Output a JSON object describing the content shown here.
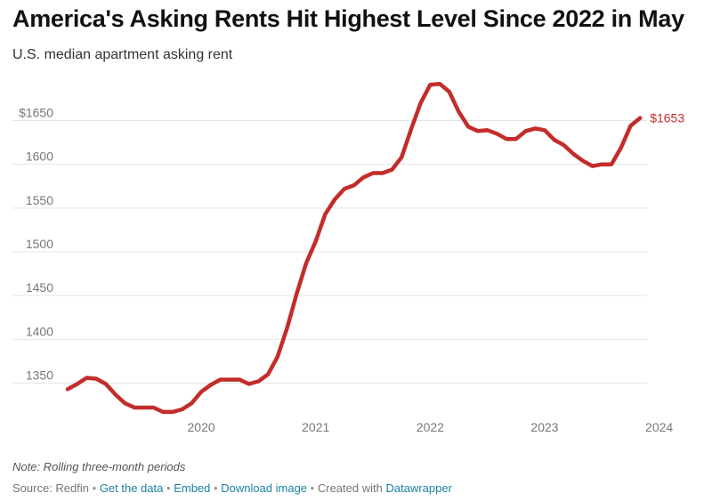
{
  "header": {
    "title": "America's Asking Rents Hit Highest Level Since 2022 in May",
    "subtitle": "U.S. median apartment asking rent"
  },
  "footer": {
    "note": "Note: Rolling three-month periods",
    "source_prefix": "Source: Redfin",
    "sep": "•",
    "get_data": "Get the data",
    "embed": "Embed",
    "download": "Download image",
    "created_with": "Created with",
    "datawrapper": "Datawrapper"
  },
  "colors": {
    "line": "#c22d2a",
    "grid": "#e5e5e5",
    "tick": "#777777",
    "link": "#1d81a2"
  },
  "chart_data": {
    "type": "line",
    "title": "America's Asking Rents Hit Highest Level Since 2022 in May",
    "subtitle": "U.S. median apartment asking rent",
    "xlabel": "",
    "ylabel": "",
    "x_ticks": [
      "2020",
      "2021",
      "2022",
      "2023",
      "2024"
    ],
    "y_ticks": [
      {
        "value": 1350,
        "label": "1350"
      },
      {
        "value": 1400,
        "label": "1400"
      },
      {
        "value": 1450,
        "label": "1450"
      },
      {
        "value": 1500,
        "label": "1500"
      },
      {
        "value": 1550,
        "label": "1550"
      },
      {
        "value": 1600,
        "label": "1600"
      },
      {
        "value": 1650,
        "label": "$1650"
      }
    ],
    "ylim": [
      1310,
      1700
    ],
    "xlim": [
      "2019-05",
      "2024-05"
    ],
    "grid": true,
    "end_label": "$1653",
    "series": [
      {
        "x": [
          "2019-05",
          "2019-06",
          "2019-07",
          "2019-08",
          "2019-09",
          "2019-10",
          "2019-11",
          "2019-12",
          "2020-01",
          "2020-02",
          "2020-03",
          "2020-04",
          "2020-05",
          "2020-06",
          "2020-07",
          "2020-08",
          "2020-09",
          "2020-10",
          "2020-11",
          "2020-12",
          "2021-01",
          "2021-02",
          "2021-03",
          "2021-04",
          "2021-05",
          "2021-06",
          "2021-07",
          "2021-08",
          "2021-09",
          "2021-10",
          "2021-11",
          "2021-12",
          "2022-01",
          "2022-02",
          "2022-03",
          "2022-04",
          "2022-05",
          "2022-06",
          "2022-07",
          "2022-08",
          "2022-09",
          "2022-10",
          "2022-11",
          "2022-12",
          "2023-01",
          "2023-02",
          "2023-03",
          "2023-04",
          "2023-05",
          "2023-06",
          "2023-07",
          "2023-08",
          "2023-09",
          "2023-10",
          "2023-11",
          "2023-12",
          "2024-01",
          "2024-02",
          "2024-03",
          "2024-04",
          "2024-05"
        ],
        "values": [
          1343,
          1349,
          1356,
          1355,
          1349,
          1337,
          1327,
          1322,
          1322,
          1322,
          1317,
          1317,
          1320,
          1327,
          1340,
          1348,
          1354,
          1354,
          1354,
          1349,
          1352,
          1360,
          1380,
          1413,
          1452,
          1487,
          1512,
          1543,
          1560,
          1572,
          1576,
          1585,
          1590,
          1590,
          1594,
          1608,
          1640,
          1670,
          1691,
          1692,
          1683,
          1660,
          1643,
          1638,
          1639,
          1635,
          1629,
          1629,
          1638,
          1641,
          1639,
          1628,
          1622,
          1612,
          1604,
          1598,
          1600,
          1600,
          1619,
          1644,
          1653
        ]
      }
    ]
  }
}
